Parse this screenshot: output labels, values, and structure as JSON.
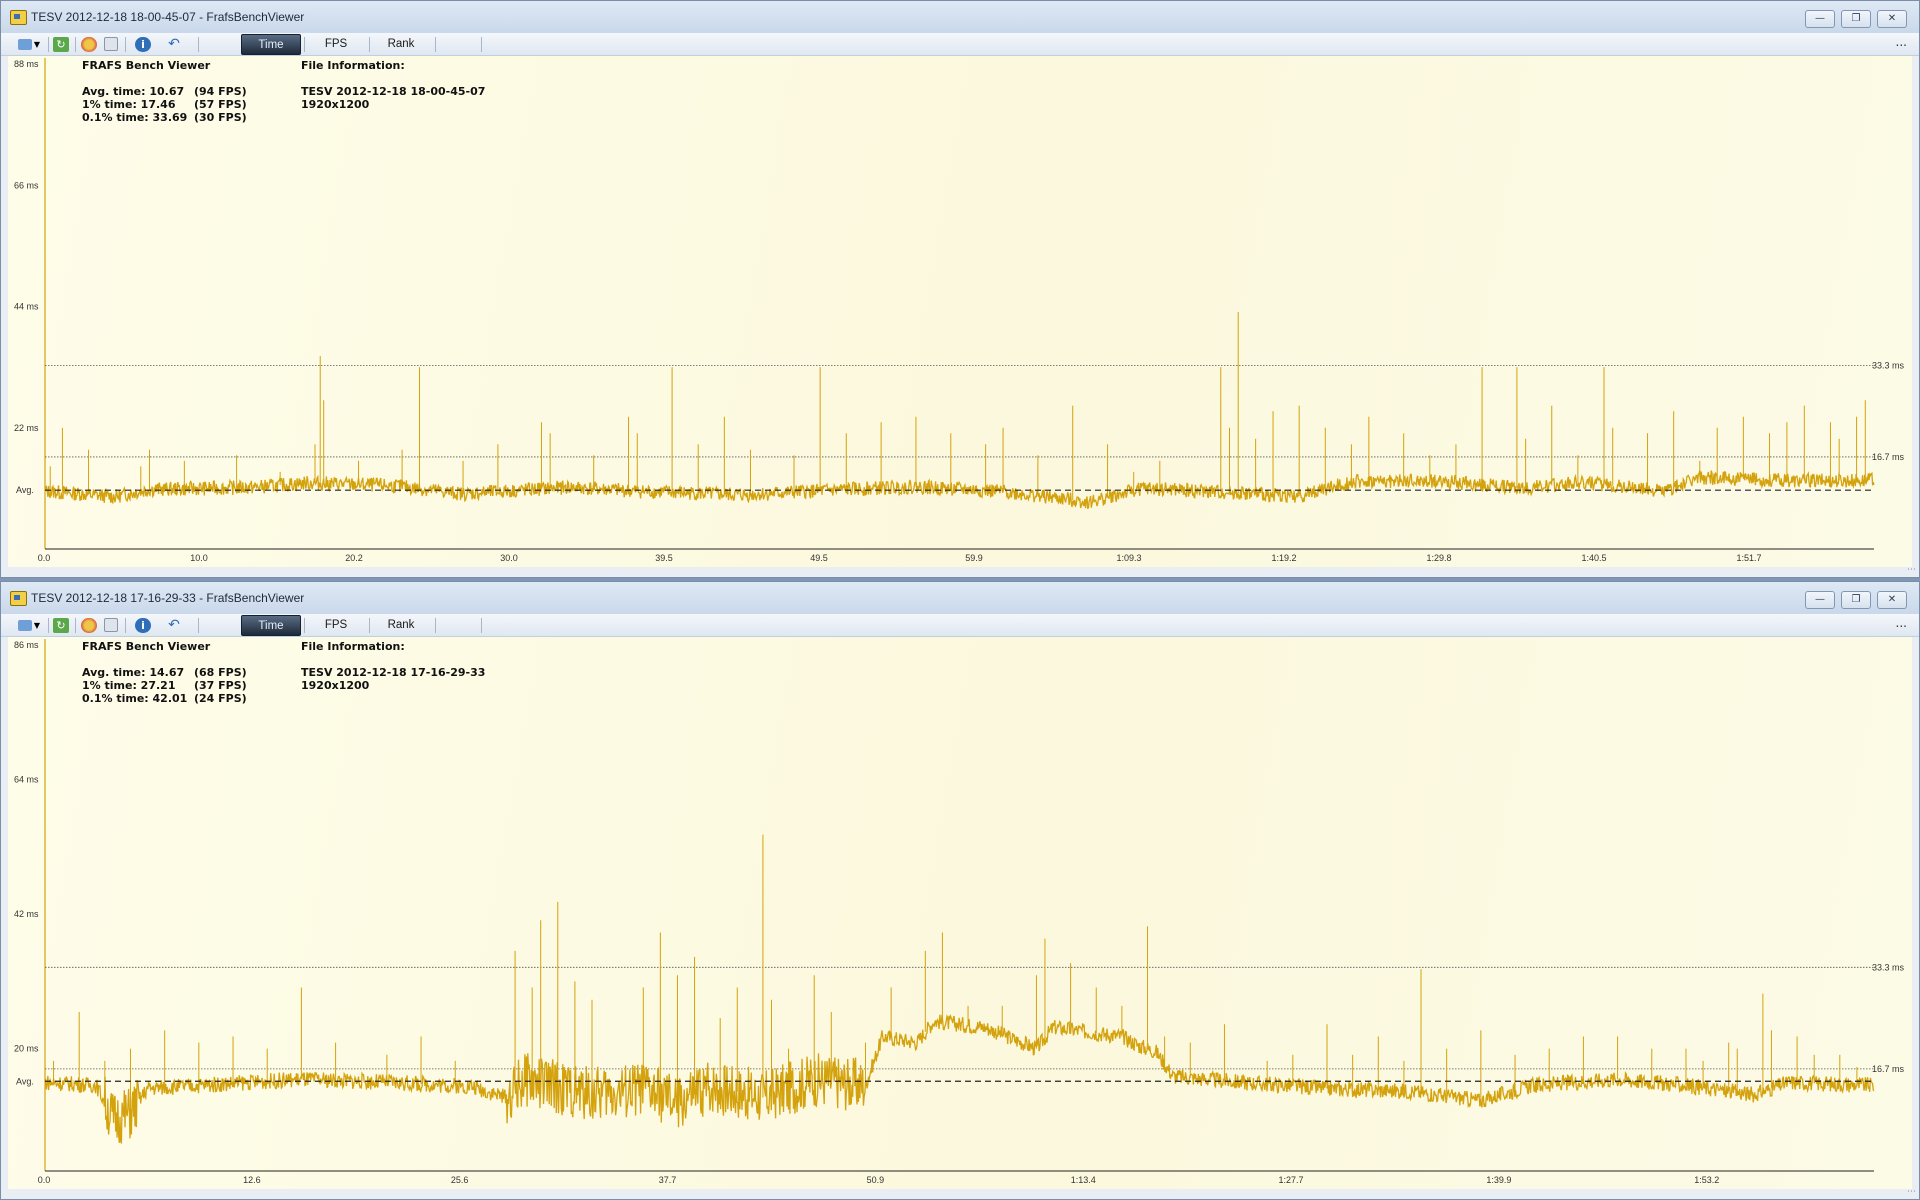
{
  "windows": [
    {
      "title": "TESV 2012-12-18 18-00-45-07 - FrafsBenchViewer",
      "toolbar": {
        "tabs": [
          "Time",
          "FPS",
          "Rank"
        ],
        "active_tab": "Time",
        "more": "..."
      },
      "stats": {
        "heading": "FRAFS Bench Viewer",
        "avg": {
          "label": "Avg. time: 10.67",
          "fps": "(94 FPS)"
        },
        "p1": {
          "label": "1% time: 17.46",
          "fps": "(57 FPS)"
        },
        "p01": {
          "label": "0.1% time: 33.69",
          "fps": "(30 FPS)"
        }
      },
      "file_info": {
        "heading": "File Information:",
        "name": "TESV 2012-12-18 18-00-45-07",
        "resolution": "1920x1200"
      },
      "chart_data": {
        "type": "line",
        "y_unit": "ms",
        "y_ticks": [
          {
            "value": 88,
            "label": "88 ms"
          },
          {
            "value": 66,
            "label": "66 ms"
          },
          {
            "value": 44,
            "label": "44 ms"
          },
          {
            "value": 22,
            "label": "22 ms"
          }
        ],
        "ylim": [
          0,
          88
        ],
        "avg_value": 10.67,
        "avg_label": "Avg.",
        "reference_lines": [
          {
            "value": 33.3,
            "label": "33.3 ms"
          },
          {
            "value": 16.7,
            "label": "16.7 ms"
          }
        ],
        "x_ticks": [
          "0.0",
          "10.0",
          "20.2",
          "30.0",
          "39.5",
          "49.5",
          "59.9",
          "1:09.3",
          "1:19.2",
          "1:29.8",
          "1:40.5",
          "1:51.7"
        ],
        "series_color": "#d4a20c",
        "baseline": [
          [
            0,
            10.5
          ],
          [
            4,
            9.5
          ],
          [
            6,
            10.8
          ],
          [
            12,
            11.2
          ],
          [
            15,
            12.0
          ],
          [
            20,
            11.5
          ],
          [
            24,
            10.0
          ],
          [
            30,
            11.2
          ],
          [
            34,
            10.5
          ],
          [
            40,
            9.8
          ],
          [
            46,
            10.8
          ],
          [
            50,
            11.3
          ],
          [
            55,
            10.4
          ],
          [
            60,
            8.5
          ],
          [
            63,
            11.0
          ],
          [
            68,
            10.2
          ],
          [
            72,
            9.6
          ],
          [
            75,
            12.2
          ],
          [
            80,
            12.3
          ],
          [
            85,
            11.0
          ],
          [
            88,
            12.1
          ],
          [
            93,
            10.6
          ],
          [
            95,
            13.0
          ],
          [
            100,
            12.4
          ],
          [
            105,
            12.5
          ]
        ],
        "spikes": [
          [
            0.3,
            15
          ],
          [
            1.0,
            22
          ],
          [
            2.5,
            18
          ],
          [
            5.5,
            15
          ],
          [
            6.0,
            18
          ],
          [
            8.0,
            16
          ],
          [
            11.0,
            17
          ],
          [
            13.5,
            14
          ],
          [
            15.5,
            19
          ],
          [
            15.8,
            35
          ],
          [
            16.0,
            27
          ],
          [
            18.0,
            16
          ],
          [
            20.5,
            18
          ],
          [
            21.5,
            33
          ],
          [
            24.0,
            16
          ],
          [
            26.0,
            19
          ],
          [
            28.5,
            23
          ],
          [
            29.0,
            21
          ],
          [
            31.5,
            17
          ],
          [
            33.5,
            24
          ],
          [
            34.0,
            21
          ],
          [
            36.0,
            33
          ],
          [
            37.5,
            19
          ],
          [
            39.0,
            24
          ],
          [
            40.5,
            18
          ],
          [
            43.0,
            17
          ],
          [
            44.5,
            33
          ],
          [
            46.0,
            21
          ],
          [
            48.0,
            23
          ],
          [
            50.0,
            24
          ],
          [
            52.0,
            21
          ],
          [
            54.0,
            19
          ],
          [
            55.0,
            22
          ],
          [
            57.0,
            17
          ],
          [
            59.0,
            26
          ],
          [
            61.0,
            19
          ],
          [
            62.5,
            14
          ],
          [
            64.0,
            16
          ],
          [
            67.5,
            33
          ],
          [
            68.0,
            22
          ],
          [
            68.5,
            43
          ],
          [
            69.5,
            20
          ],
          [
            70.5,
            25
          ],
          [
            72.0,
            26
          ],
          [
            73.5,
            22
          ],
          [
            75.0,
            19
          ],
          [
            76.0,
            24
          ],
          [
            78.0,
            21
          ],
          [
            79.5,
            17
          ],
          [
            81.0,
            19
          ],
          [
            82.5,
            33
          ],
          [
            84.5,
            33
          ],
          [
            85.0,
            20
          ],
          [
            86.5,
            26
          ],
          [
            88.0,
            17
          ],
          [
            89.5,
            33
          ],
          [
            90.0,
            22
          ],
          [
            92.0,
            21
          ],
          [
            93.5,
            25
          ],
          [
            95.0,
            16
          ],
          [
            96.0,
            22
          ],
          [
            97.5,
            24
          ],
          [
            99.0,
            21
          ],
          [
            100.0,
            23
          ],
          [
            101.0,
            26
          ],
          [
            102.5,
            23
          ],
          [
            103.0,
            20
          ],
          [
            104.0,
            24
          ],
          [
            104.5,
            27
          ]
        ],
        "duration_s": 105
      }
    },
    {
      "title": "TESV 2012-12-18 17-16-29-33 - FrafsBenchViewer",
      "toolbar": {
        "tabs": [
          "Time",
          "FPS",
          "Rank"
        ],
        "active_tab": "Time",
        "more": "..."
      },
      "stats": {
        "heading": "FRAFS Bench Viewer",
        "avg": {
          "label": "Avg. time: 14.67",
          "fps": "(68 FPS)"
        },
        "p1": {
          "label": "1% time: 27.21",
          "fps": "(37 FPS)"
        },
        "p01": {
          "label": "0.1% time: 42.01",
          "fps": "(24 FPS)"
        }
      },
      "file_info": {
        "heading": "File Information:",
        "name": "TESV 2012-12-18 17-16-29-33",
        "resolution": "1920x1200"
      },
      "chart_data": {
        "type": "line",
        "y_unit": "ms",
        "y_ticks": [
          {
            "value": 86,
            "label": "86 ms"
          },
          {
            "value": 64,
            "label": "64 ms"
          },
          {
            "value": 42,
            "label": "42 ms"
          },
          {
            "value": 20,
            "label": "20 ms"
          }
        ],
        "ylim": [
          0,
          86
        ],
        "avg_value": 14.67,
        "avg_label": "Avg.",
        "reference_lines": [
          {
            "value": 33.3,
            "label": "33.3 ms"
          },
          {
            "value": 16.7,
            "label": "16.7 ms"
          }
        ],
        "x_ticks": [
          "0.0",
          "12.6",
          "25.6",
          "37.7",
          "50.9",
          "1:13.4",
          "1:27.7",
          "1:39.9",
          "1:53.2"
        ],
        "series_color": "#d4a20c",
        "baseline": [
          [
            0,
            14.5
          ],
          [
            3,
            14.0
          ],
          [
            4,
            8.5
          ],
          [
            5,
            9.5
          ],
          [
            6,
            13.5
          ],
          [
            12,
            14.5
          ],
          [
            15,
            15.0
          ],
          [
            20,
            14.5
          ],
          [
            25,
            13.8
          ],
          [
            27,
            12.0
          ],
          [
            28,
            15.0
          ],
          [
            32,
            12.5
          ],
          [
            35,
            13.5
          ],
          [
            37,
            11.0
          ],
          [
            39,
            14.0
          ],
          [
            42,
            12.0
          ],
          [
            45,
            15.0
          ],
          [
            48,
            14.0
          ],
          [
            49,
            22.0
          ],
          [
            51,
            21.0
          ],
          [
            52,
            24.5
          ],
          [
            55,
            23.5
          ],
          [
            58,
            20.0
          ],
          [
            59,
            23.5
          ],
          [
            63,
            22.0
          ],
          [
            64,
            20.5
          ],
          [
            65,
            19.5
          ],
          [
            66,
            15.5
          ],
          [
            70,
            14.5
          ],
          [
            75,
            13.5
          ],
          [
            80,
            13.0
          ],
          [
            84,
            11.5
          ],
          [
            87,
            14.0
          ],
          [
            92,
            15.0
          ],
          [
            96,
            14.0
          ],
          [
            100,
            12.5
          ],
          [
            102,
            14.5
          ],
          [
            107,
            14.0
          ]
        ],
        "spikes": [
          [
            0.5,
            18
          ],
          [
            2.0,
            26
          ],
          [
            3.5,
            18
          ],
          [
            5.0,
            20
          ],
          [
            7.0,
            23
          ],
          [
            9.0,
            21
          ],
          [
            11.0,
            22
          ],
          [
            13.0,
            20
          ],
          [
            15.0,
            30
          ],
          [
            17.0,
            21
          ],
          [
            20.0,
            19
          ],
          [
            22.0,
            22
          ],
          [
            24.0,
            18
          ],
          [
            27.5,
            36
          ],
          [
            28.5,
            30
          ],
          [
            29.0,
            41
          ],
          [
            30.0,
            44
          ],
          [
            31.0,
            31
          ],
          [
            32.0,
            28
          ],
          [
            35.0,
            30
          ],
          [
            36.0,
            39
          ],
          [
            37.0,
            32
          ],
          [
            38.0,
            35
          ],
          [
            39.5,
            25
          ],
          [
            40.5,
            30
          ],
          [
            42.0,
            55
          ],
          [
            42.5,
            28
          ],
          [
            43.5,
            20
          ],
          [
            45.0,
            32
          ],
          [
            46.0,
            26
          ],
          [
            48.0,
            21
          ],
          [
            49.5,
            30
          ],
          [
            51.5,
            36
          ],
          [
            52.5,
            39
          ],
          [
            54.0,
            27
          ],
          [
            56.0,
            27
          ],
          [
            58.0,
            32
          ],
          [
            58.5,
            38
          ],
          [
            60.0,
            34
          ],
          [
            61.5,
            30
          ],
          [
            63.0,
            27
          ],
          [
            64.5,
            40
          ],
          [
            65.5,
            22
          ],
          [
            67.0,
            21
          ],
          [
            69.0,
            24
          ],
          [
            71.5,
            18
          ],
          [
            73.0,
            19
          ],
          [
            75.0,
            24
          ],
          [
            76.5,
            19
          ],
          [
            78.0,
            22
          ],
          [
            79.5,
            18
          ],
          [
            80.5,
            33
          ],
          [
            82.0,
            20
          ],
          [
            84.0,
            23
          ],
          [
            86.0,
            19
          ],
          [
            88.0,
            20
          ],
          [
            90.0,
            22
          ],
          [
            92.0,
            22
          ],
          [
            94.0,
            20
          ],
          [
            96.0,
            20
          ],
          [
            97.0,
            18
          ],
          [
            98.5,
            21
          ],
          [
            99.0,
            20
          ],
          [
            100.5,
            29
          ],
          [
            101.0,
            23
          ],
          [
            102.5,
            22
          ],
          [
            103.5,
            19
          ],
          [
            105.0,
            19
          ],
          [
            106.0,
            17
          ]
        ],
        "duration_s": 107
      }
    }
  ]
}
